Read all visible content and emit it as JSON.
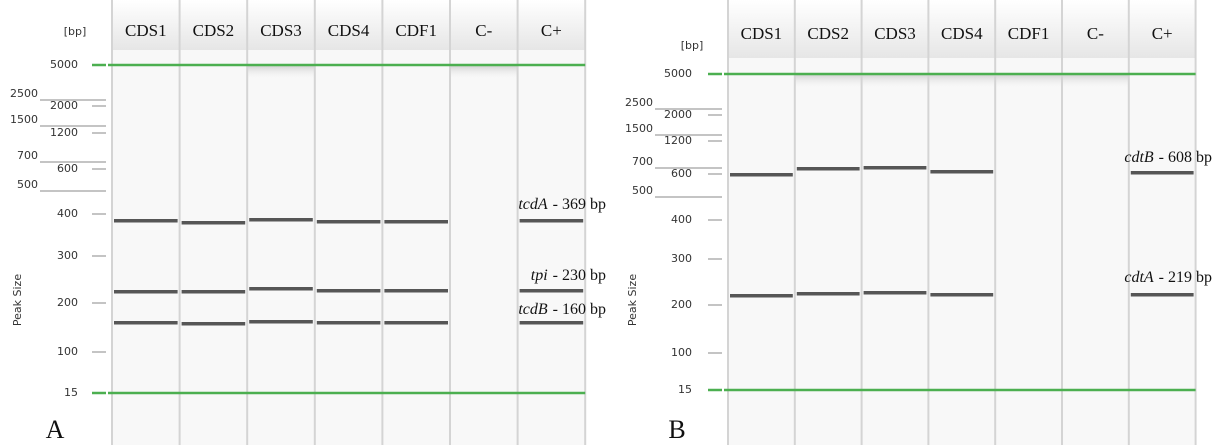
{
  "panels": [
    {
      "letter": "A",
      "unit": "[bp]",
      "axis_title": "Peak Size",
      "lanes": [
        "CDS1",
        "CDS2",
        "CDS3",
        "CDS4",
        "CDF1",
        "C-",
        "C+"
      ],
      "ladder_left": [
        "2500",
        "1500",
        "700",
        "500"
      ],
      "ladder_right": [
        "5000",
        "2000",
        "1200",
        "600",
        "400",
        "300",
        "200",
        "100",
        "15"
      ],
      "annotations": [
        {
          "gene": "tcdA",
          "size": "- 369 bp"
        },
        {
          "gene": "tpi",
          "size": "- 230 bp"
        },
        {
          "gene": "tcdB",
          "size": "- 160 bp"
        }
      ]
    },
    {
      "letter": "B",
      "unit": "[bp]",
      "axis_title": "Peak Size",
      "lanes": [
        "CDS1",
        "CDS2",
        "CDS3",
        "CDS4",
        "CDF1",
        "C-",
        "C+"
      ],
      "ladder_left": [
        "2500",
        "1500",
        "700",
        "500"
      ],
      "ladder_right": [
        "5000",
        "2000",
        "1200",
        "600",
        "400",
        "300",
        "200",
        "100",
        "15"
      ],
      "annotations": [
        {
          "gene": "cdtB",
          "size": "- 608 bp"
        },
        {
          "gene": "cdtA",
          "size": "- 219 bp"
        }
      ]
    }
  ]
}
